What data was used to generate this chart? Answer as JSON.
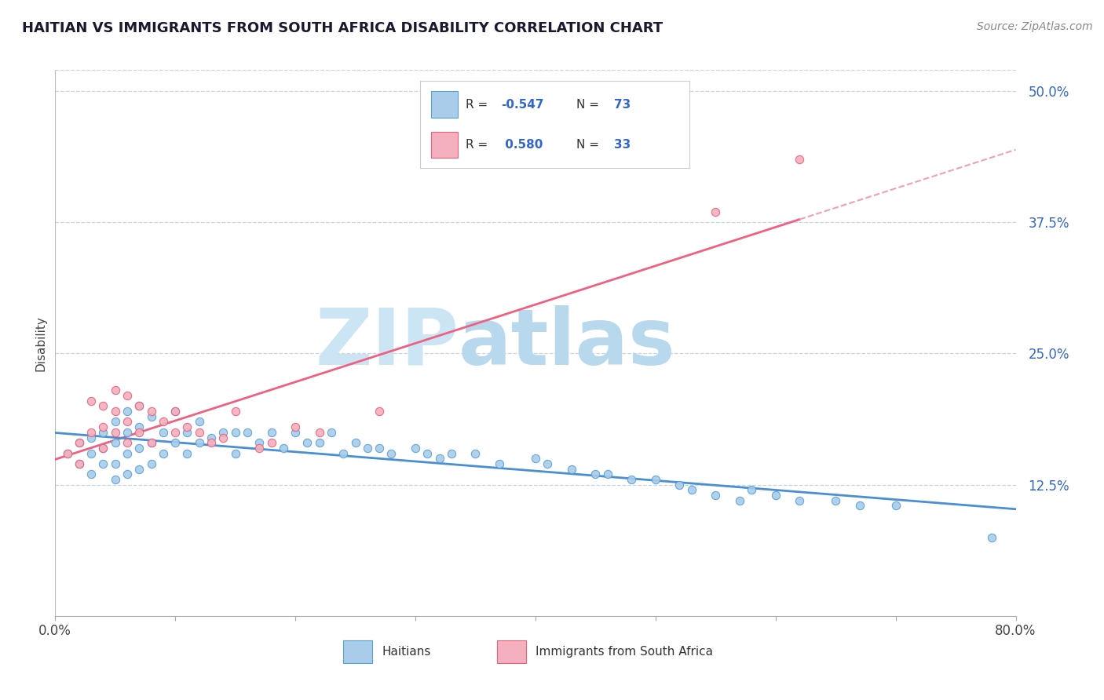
{
  "title": "HAITIAN VS IMMIGRANTS FROM SOUTH AFRICA DISABILITY CORRELATION CHART",
  "source_text": "Source: ZipAtlas.com",
  "ylabel": "Disability",
  "xlim": [
    0.0,
    0.8
  ],
  "ylim": [
    0.0,
    0.52
  ],
  "xticks": [
    0.0,
    0.1,
    0.2,
    0.3,
    0.4,
    0.5,
    0.6,
    0.7,
    0.8
  ],
  "xticklabels": [
    "0.0%",
    "",
    "",
    "",
    "",
    "",
    "",
    "",
    "80.0%"
  ],
  "yticks": [
    0.125,
    0.25,
    0.375,
    0.5
  ],
  "yticklabels": [
    "12.5%",
    "25.0%",
    "37.5%",
    "50.0%"
  ],
  "haitian_color": "#a8ccea",
  "sa_color": "#f4b0be",
  "haitian_edge_color": "#5a9fd4",
  "sa_edge_color": "#e8607a",
  "haitian_line_color": "#4a8fd4",
  "sa_line_color": "#f06080",
  "sa_line_dashed_color": "#f0a0b0",
  "R_haitian": -0.547,
  "N_haitian": 73,
  "R_sa": 0.58,
  "N_sa": 33,
  "watermark_zip": "ZIP",
  "watermark_atlas": "atlas",
  "watermark_color": "#cce5f5",
  "watermark_atlas_color": "#b0cce0",
  "background_color": "#ffffff",
  "grid_color": "#c8d4e4",
  "haitian_x": [
    0.01,
    0.02,
    0.02,
    0.03,
    0.03,
    0.03,
    0.04,
    0.04,
    0.04,
    0.05,
    0.05,
    0.05,
    0.05,
    0.06,
    0.06,
    0.06,
    0.06,
    0.07,
    0.07,
    0.07,
    0.07,
    0.08,
    0.08,
    0.08,
    0.09,
    0.09,
    0.1,
    0.1,
    0.11,
    0.11,
    0.12,
    0.12,
    0.13,
    0.14,
    0.15,
    0.15,
    0.16,
    0.17,
    0.18,
    0.19,
    0.2,
    0.21,
    0.22,
    0.23,
    0.24,
    0.25,
    0.26,
    0.27,
    0.28,
    0.3,
    0.31,
    0.32,
    0.33,
    0.35,
    0.37,
    0.4,
    0.41,
    0.43,
    0.45,
    0.46,
    0.48,
    0.5,
    0.52,
    0.53,
    0.55,
    0.57,
    0.58,
    0.6,
    0.62,
    0.65,
    0.67,
    0.7,
    0.78
  ],
  "haitian_y": [
    0.155,
    0.165,
    0.145,
    0.17,
    0.155,
    0.135,
    0.175,
    0.16,
    0.145,
    0.185,
    0.165,
    0.145,
    0.13,
    0.195,
    0.175,
    0.155,
    0.135,
    0.2,
    0.18,
    0.16,
    0.14,
    0.19,
    0.165,
    0.145,
    0.175,
    0.155,
    0.195,
    0.165,
    0.175,
    0.155,
    0.185,
    0.165,
    0.17,
    0.175,
    0.175,
    0.155,
    0.175,
    0.165,
    0.175,
    0.16,
    0.175,
    0.165,
    0.165,
    0.175,
    0.155,
    0.165,
    0.16,
    0.16,
    0.155,
    0.16,
    0.155,
    0.15,
    0.155,
    0.155,
    0.145,
    0.15,
    0.145,
    0.14,
    0.135,
    0.135,
    0.13,
    0.13,
    0.125,
    0.12,
    0.115,
    0.11,
    0.12,
    0.115,
    0.11,
    0.11,
    0.105,
    0.105,
    0.075
  ],
  "sa_x": [
    0.01,
    0.02,
    0.02,
    0.03,
    0.03,
    0.04,
    0.04,
    0.04,
    0.05,
    0.05,
    0.05,
    0.06,
    0.06,
    0.06,
    0.07,
    0.07,
    0.08,
    0.08,
    0.09,
    0.1,
    0.1,
    0.11,
    0.12,
    0.13,
    0.14,
    0.15,
    0.17,
    0.18,
    0.2,
    0.22,
    0.27,
    0.55,
    0.62
  ],
  "sa_y": [
    0.155,
    0.165,
    0.145,
    0.205,
    0.175,
    0.2,
    0.18,
    0.16,
    0.215,
    0.195,
    0.175,
    0.21,
    0.185,
    0.165,
    0.2,
    0.175,
    0.195,
    0.165,
    0.185,
    0.195,
    0.175,
    0.18,
    0.175,
    0.165,
    0.17,
    0.195,
    0.16,
    0.165,
    0.18,
    0.175,
    0.195,
    0.385,
    0.435
  ],
  "legend_R_color": "#3366cc",
  "legend_N_color": "#3366cc"
}
